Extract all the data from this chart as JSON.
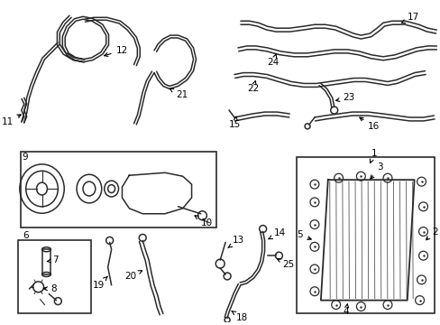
{
  "bg_color": "#ffffff",
  "line_color": "#2a2a2a",
  "label_color": "#000000",
  "label_fontsize": 7.5,
  "fig_width": 4.89,
  "fig_height": 3.6,
  "dpi": 100
}
